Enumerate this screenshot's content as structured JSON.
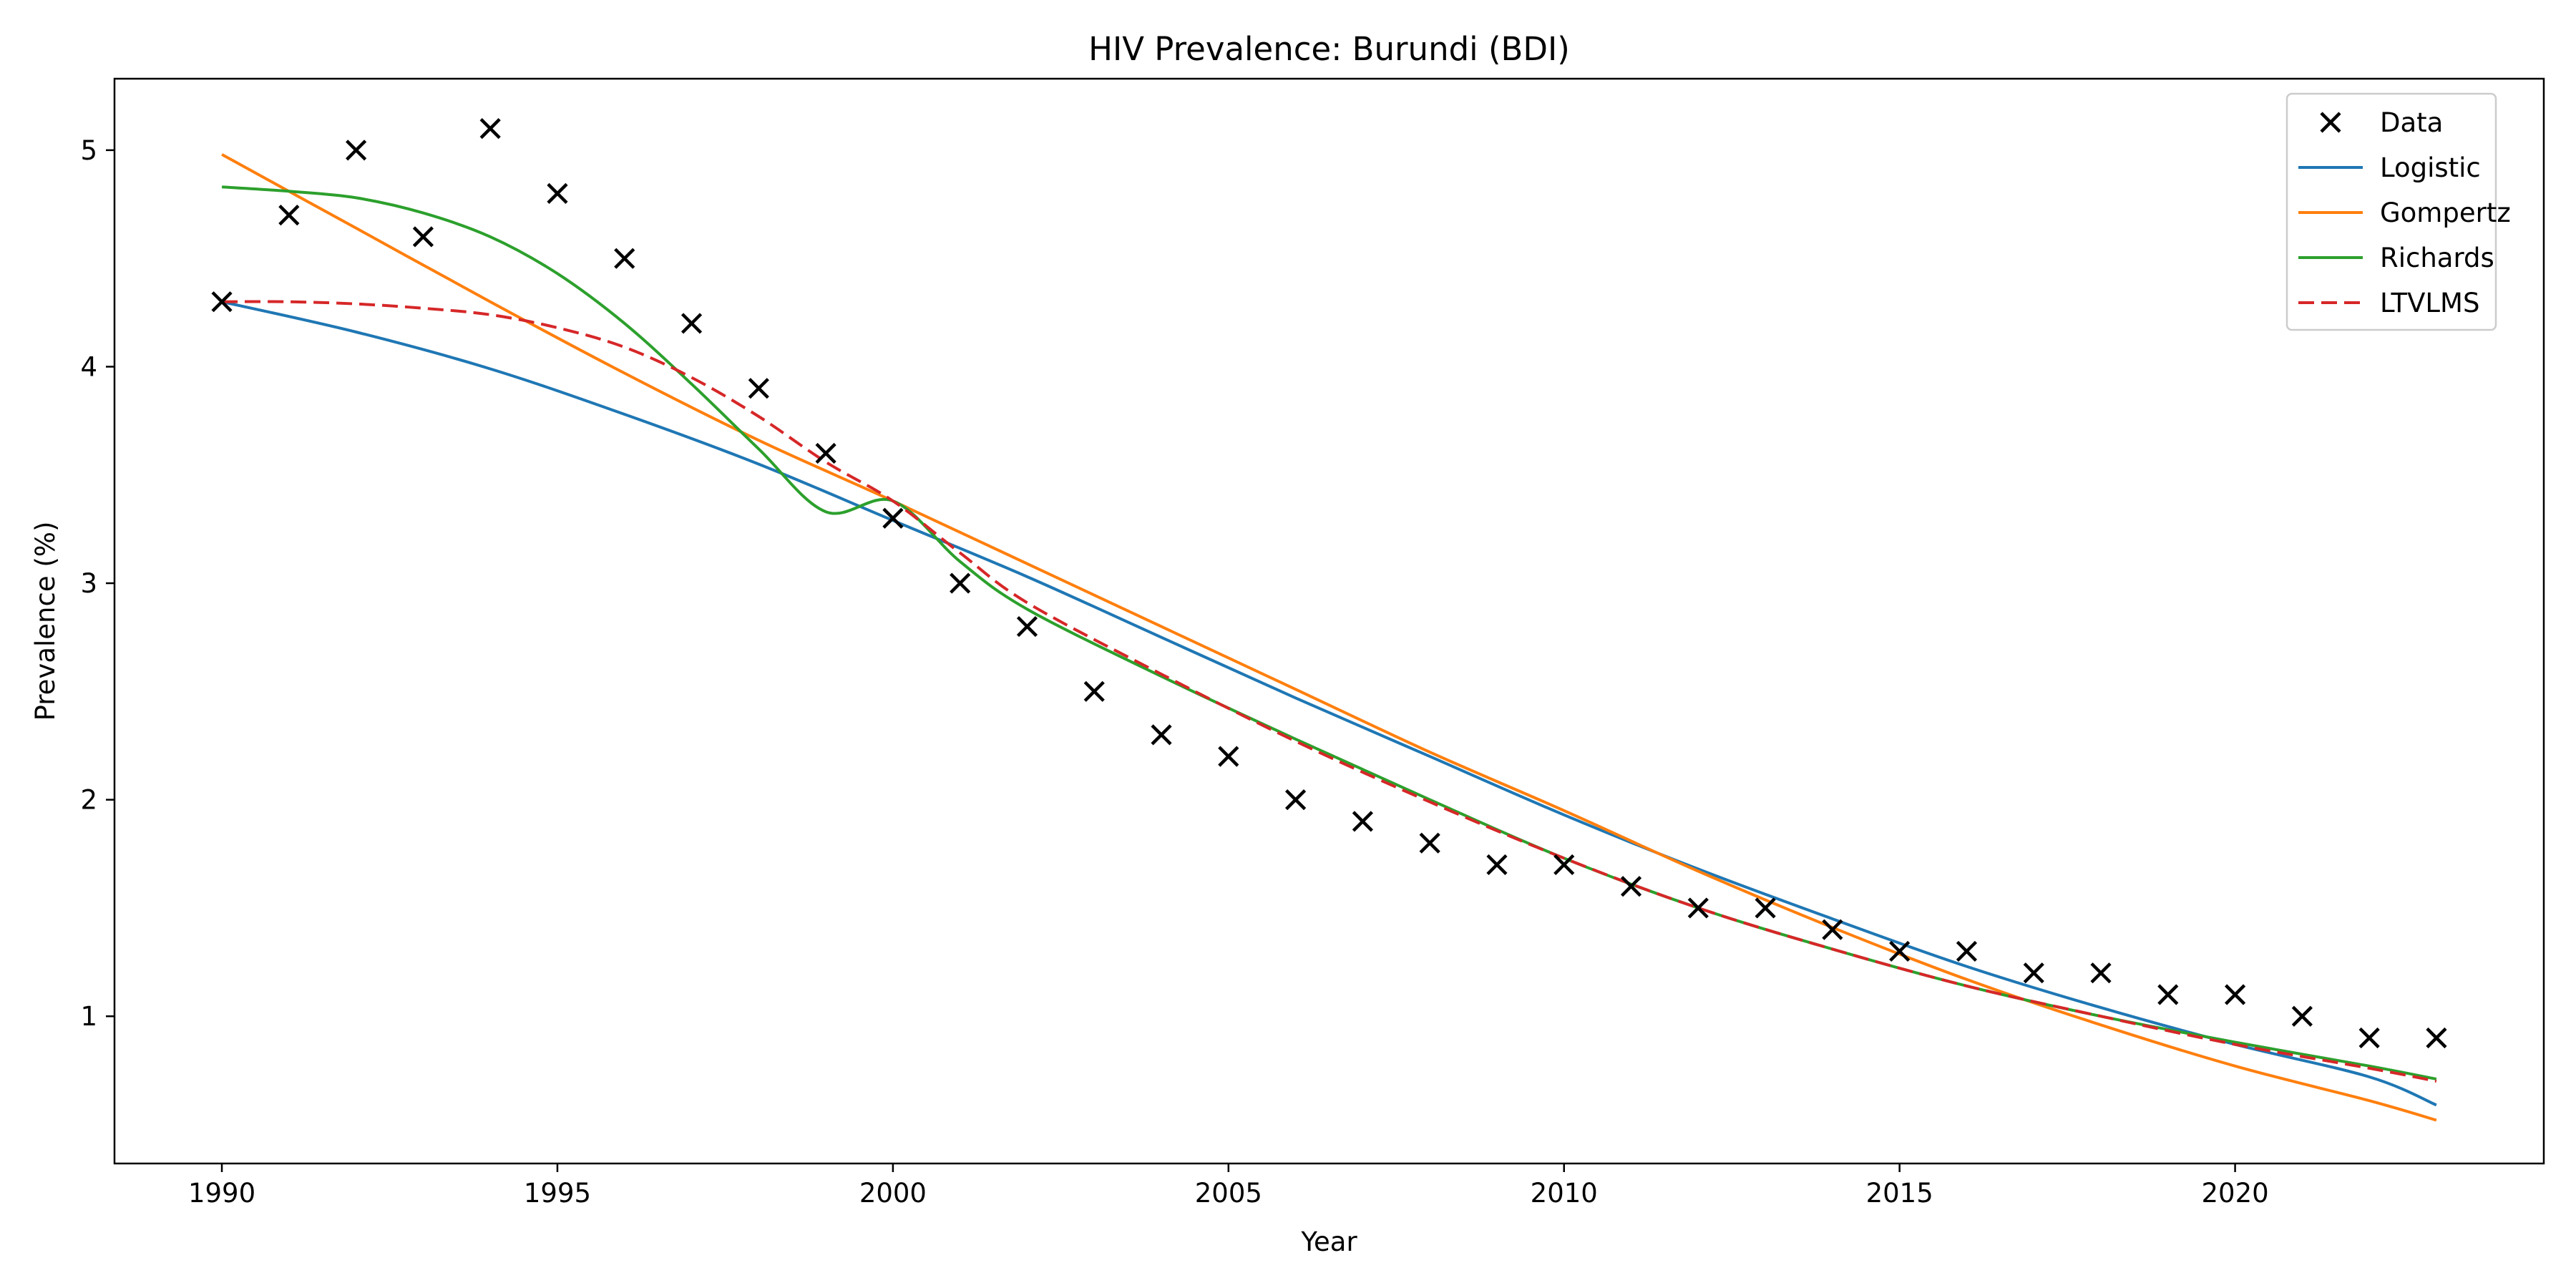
{
  "chart_data": {
    "type": "line",
    "title": "HIV Prevalence: Burundi (BDI)",
    "xlabel": "Year",
    "ylabel": "Prevalence (%)",
    "xlim": [
      1988.4,
      2024.6
    ],
    "ylim": [
      0.32,
      5.33
    ],
    "xticks": [
      1990,
      1995,
      2000,
      2005,
      2010,
      2015,
      2020
    ],
    "yticks": [
      1,
      2,
      3,
      4,
      5
    ],
    "grid": false,
    "legend_position": "top-right",
    "scatter": {
      "name": "Data",
      "color": "#000000",
      "marker": "x",
      "x": [
        1990,
        1991,
        1992,
        1993,
        1994,
        1995,
        1996,
        1997,
        1998,
        1999,
        2000,
        2001,
        2002,
        2003,
        2004,
        2005,
        2006,
        2007,
        2008,
        2009,
        2010,
        2011,
        2012,
        2013,
        2014,
        2015,
        2016,
        2017,
        2018,
        2019,
        2020,
        2021,
        2022,
        2023
      ],
      "y": [
        4.3,
        4.7,
        5.0,
        4.6,
        5.1,
        4.8,
        4.5,
        4.2,
        3.9,
        3.6,
        3.3,
        3.0,
        2.8,
        2.5,
        2.3,
        2.2,
        2.0,
        1.9,
        1.8,
        1.7,
        1.7,
        1.6,
        1.5,
        1.5,
        1.4,
        1.3,
        1.3,
        1.2,
        1.2,
        1.1,
        1.1,
        1.0,
        0.9,
        0.9
      ]
    },
    "series": [
      {
        "name": "Logistic",
        "color": "#1f77b4",
        "dash": "solid",
        "x": [
          1990,
          1992,
          1994,
          1996,
          1998,
          2000,
          2002,
          2004,
          2006,
          2008,
          2010,
          2012,
          2014,
          2016,
          2018,
          2020,
          2022,
          2023
        ],
        "y": [
          4.3,
          4.16,
          3.99,
          3.78,
          3.55,
          3.29,
          3.03,
          2.75,
          2.47,
          2.2,
          1.93,
          1.68,
          1.45,
          1.23,
          1.04,
          0.87,
          0.72,
          0.59
        ]
      },
      {
        "name": "Gompertz",
        "color": "#ff7f0e",
        "dash": "solid",
        "x": [
          1990,
          1992,
          1994,
          1996,
          1998,
          2000,
          2002,
          2004,
          2006,
          2008,
          2010,
          2012,
          2014,
          2016,
          2018,
          2020,
          2022,
          2023
        ],
        "y": [
          4.98,
          4.64,
          4.3,
          3.97,
          3.66,
          3.38,
          3.09,
          2.8,
          2.51,
          2.22,
          1.95,
          1.67,
          1.41,
          1.17,
          0.96,
          0.77,
          0.61,
          0.52
        ]
      },
      {
        "name": "Richards",
        "color": "#2ca02c",
        "dash": "solid",
        "x": [
          1990,
          1991,
          1992,
          1993,
          1994,
          1995,
          1996,
          1997,
          1998,
          1999,
          2000,
          2001,
          2002,
          2004,
          2006,
          2008,
          2010,
          2012,
          2014,
          2016,
          2018,
          2020,
          2022,
          2023
        ],
        "y": [
          4.83,
          4.81,
          4.78,
          4.71,
          4.6,
          4.43,
          4.2,
          3.92,
          3.62,
          3.33,
          3.38,
          3.1,
          2.88,
          2.57,
          2.28,
          2.0,
          1.73,
          1.5,
          1.31,
          1.14,
          1.0,
          0.88,
          0.77,
          0.71
        ]
      },
      {
        "name": "LTVLMS",
        "color": "#d62728",
        "dash": "dashed",
        "x": [
          1990,
          1991,
          1992,
          1993,
          1994,
          1995,
          1996,
          1997,
          1998,
          1999,
          2000,
          2001,
          2002,
          2004,
          2006,
          2008,
          2010,
          2012,
          2014,
          2016,
          2018,
          2020,
          2022,
          2023
        ],
        "y": [
          4.3,
          4.3,
          4.29,
          4.27,
          4.24,
          4.18,
          4.09,
          3.95,
          3.77,
          3.56,
          3.38,
          3.14,
          2.91,
          2.58,
          2.27,
          1.99,
          1.73,
          1.5,
          1.31,
          1.14,
          1.0,
          0.87,
          0.76,
          0.7
        ]
      }
    ]
  }
}
